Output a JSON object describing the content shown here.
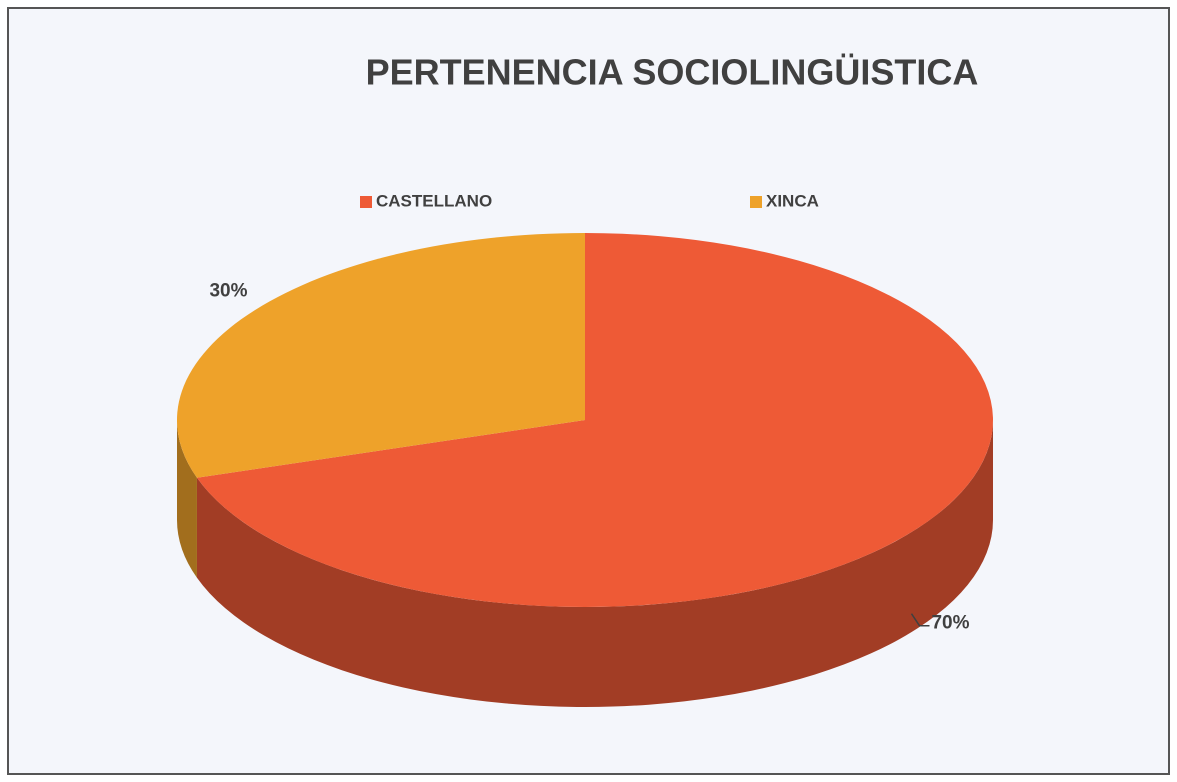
{
  "chart_data": {
    "type": "pie",
    "title": "PERTENENCIA SOCIOLINGÜISTICA",
    "categories": [
      "CASTELLANO",
      "XINCA"
    ],
    "values": [
      70,
      30
    ],
    "value_labels": [
      "70%",
      "30%"
    ],
    "colors": [
      "#ee5a36",
      "#eea22a"
    ],
    "legend": "top"
  }
}
